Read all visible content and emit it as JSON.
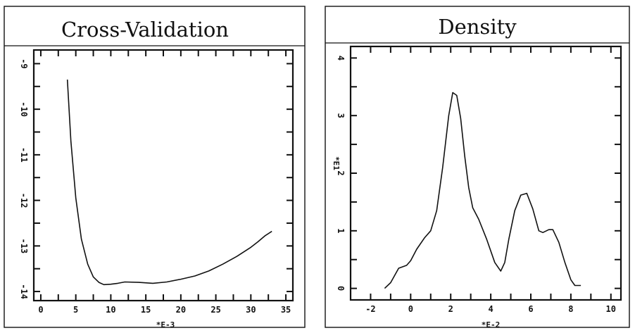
{
  "chart_data": [
    {
      "type": "line",
      "title": "Cross-Validation",
      "x_multiplier": "*E-3",
      "xlim": [
        -1,
        36
      ],
      "ylim": [
        -14.2,
        -8.7
      ],
      "x_ticks": [
        0,
        5,
        10,
        15,
        20,
        25,
        30,
        35
      ],
      "y_ticks": [
        -9,
        -10,
        -11,
        -12,
        -13,
        -14
      ],
      "series": [
        {
          "x": [
            3.8,
            4.3,
            5,
            5.8,
            6.7,
            7.5,
            8.3,
            9,
            10,
            11,
            12,
            14,
            16,
            18,
            20,
            22,
            24,
            26,
            28,
            30,
            31,
            32,
            33
          ],
          "y": [
            -9.35,
            -10.7,
            -11.95,
            -12.85,
            -13.4,
            -13.68,
            -13.8,
            -13.85,
            -13.84,
            -13.82,
            -13.79,
            -13.8,
            -13.82,
            -13.79,
            -13.73,
            -13.66,
            -13.55,
            -13.4,
            -13.23,
            -13.03,
            -12.91,
            -12.78,
            -12.68
          ]
        }
      ]
    },
    {
      "type": "line",
      "title": "Density",
      "x_multiplier": "*E-2",
      "y_multiplier": "*E1",
      "xlim": [
        -3,
        10.5
      ],
      "ylim": [
        -0.2,
        4.2
      ],
      "x_ticks": [
        -2,
        0,
        2,
        4,
        6,
        8,
        10
      ],
      "y_ticks": [
        0,
        1,
        2,
        3,
        4
      ],
      "series": [
        {
          "x": [
            -1.3,
            -1,
            -0.6,
            -0.2,
            0,
            0.3,
            0.7,
            1,
            1.3,
            1.6,
            1.9,
            2.1,
            2.3,
            2.5,
            2.7,
            2.9,
            3.1,
            3.4,
            3.8,
            4.2,
            4.5,
            4.7,
            4.9,
            5.2,
            5.5,
            5.8,
            6.1,
            6.4,
            6.6,
            6.9,
            7.1,
            7.4,
            7.7,
            8,
            8.2,
            8.5
          ],
          "y": [
            0,
            0.1,
            0.35,
            0.4,
            0.48,
            0.68,
            0.88,
            1,
            1.35,
            2.1,
            3.0,
            3.4,
            3.35,
            2.95,
            2.3,
            1.75,
            1.4,
            1.2,
            0.85,
            0.45,
            0.3,
            0.45,
            0.85,
            1.35,
            1.62,
            1.65,
            1.38,
            1.0,
            0.97,
            1.02,
            1.02,
            0.8,
            0.45,
            0.15,
            0.05,
            0.05
          ]
        }
      ]
    }
  ]
}
